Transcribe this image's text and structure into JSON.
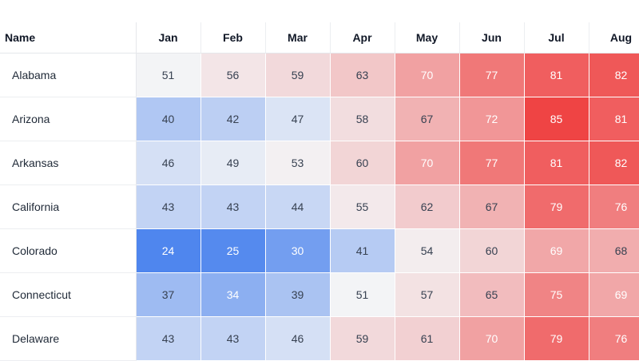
{
  "chart_data": {
    "type": "heatmap",
    "row_header": "Name",
    "columns": [
      "Jan",
      "Feb",
      "Mar",
      "Apr",
      "May",
      "Jun",
      "Jul",
      "Aug"
    ],
    "rows": [
      {
        "name": "Alabama",
        "values": [
          51,
          56,
          59,
          63,
          70,
          77,
          81,
          82
        ],
        "light_text": [
          false,
          false,
          false,
          false,
          true,
          true,
          true,
          true
        ]
      },
      {
        "name": "Arizona",
        "values": [
          40,
          42,
          47,
          58,
          67,
          72,
          85,
          81
        ],
        "light_text": [
          false,
          false,
          false,
          false,
          false,
          true,
          true,
          true
        ]
      },
      {
        "name": "Arkansas",
        "values": [
          46,
          49,
          53,
          60,
          70,
          77,
          81,
          82
        ],
        "light_text": [
          false,
          false,
          false,
          false,
          true,
          true,
          true,
          true
        ]
      },
      {
        "name": "California",
        "values": [
          43,
          43,
          44,
          55,
          62,
          67,
          79,
          76
        ],
        "light_text": [
          false,
          false,
          false,
          false,
          false,
          false,
          true,
          true
        ]
      },
      {
        "name": "Colorado",
        "values": [
          24,
          25,
          30,
          41,
          54,
          60,
          69,
          68
        ],
        "light_text": [
          true,
          true,
          true,
          false,
          false,
          false,
          true,
          false
        ]
      },
      {
        "name": "Connecticut",
        "values": [
          37,
          34,
          39,
          51,
          57,
          65,
          75,
          69
        ],
        "light_text": [
          false,
          true,
          false,
          false,
          false,
          false,
          true,
          true
        ]
      },
      {
        "name": "Delaware",
        "values": [
          43,
          43,
          46,
          59,
          61,
          70,
          79,
          76
        ],
        "light_text": [
          false,
          false,
          false,
          false,
          false,
          true,
          true,
          true
        ]
      }
    ],
    "color_scale": {
      "low": "#4f86ee",
      "mid": "#f3f4f6",
      "high": "#ef4444",
      "low_value": 24,
      "mid_value": 51,
      "high_value": 85
    }
  }
}
